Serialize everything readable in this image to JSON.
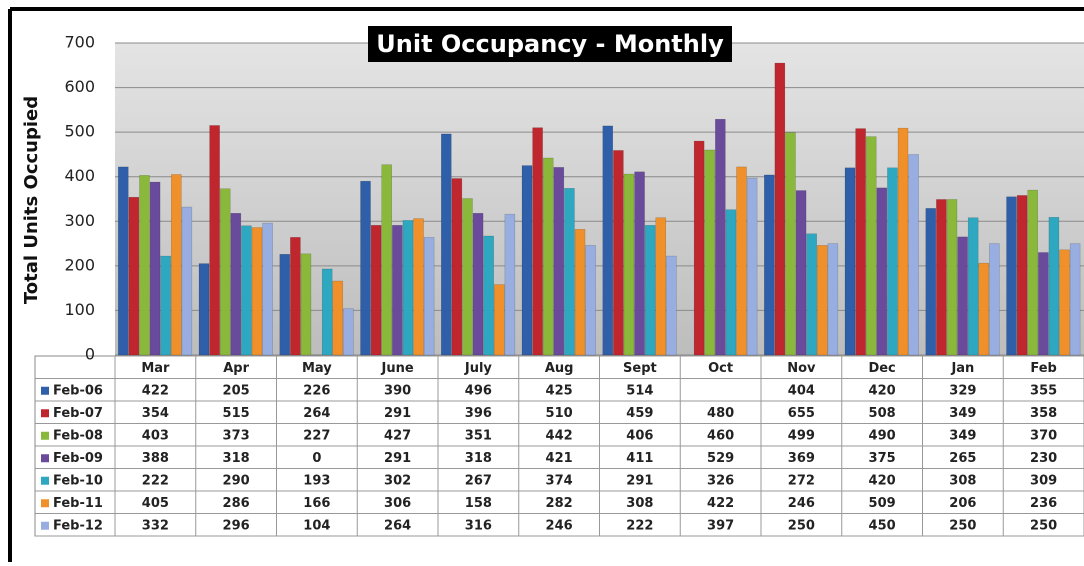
{
  "chart_data": {
    "type": "bar",
    "title": "Unit Occupancy - Monthly",
    "y_label": "Total Units Occupied",
    "categories": [
      "Mar",
      "Apr",
      "May",
      "June",
      "July",
      "Aug",
      "Sept",
      "Oct",
      "Nov",
      "Dec",
      "Jan",
      "Feb"
    ],
    "series": [
      {
        "name": "Feb-06",
        "color": "#2f5fa8",
        "values": [
          422,
          205,
          226,
          390,
          496,
          425,
          514,
          null,
          404,
          420,
          329,
          355
        ]
      },
      {
        "name": "Feb-07",
        "color": "#c0262d",
        "values": [
          354,
          515,
          264,
          291,
          396,
          510,
          459,
          480,
          655,
          508,
          349,
          358
        ]
      },
      {
        "name": "Feb-08",
        "color": "#8ab83a",
        "values": [
          403,
          373,
          227,
          427,
          351,
          442,
          406,
          460,
          499,
          490,
          349,
          370
        ]
      },
      {
        "name": "Feb-09",
        "color": "#6a4a9a",
        "values": [
          388,
          318,
          0,
          291,
          318,
          421,
          411,
          529,
          369,
          375,
          265,
          230
        ]
      },
      {
        "name": "Feb-10",
        "color": "#2ea8c0",
        "values": [
          222,
          290,
          193,
          302,
          267,
          374,
          291,
          326,
          272,
          420,
          308,
          309
        ]
      },
      {
        "name": "Feb-11",
        "color": "#f0902a",
        "values": [
          405,
          286,
          166,
          306,
          158,
          282,
          308,
          422,
          246,
          509,
          206,
          236
        ]
      },
      {
        "name": "Feb-12",
        "color": "#98aee0",
        "values": [
          332,
          296,
          104,
          264,
          316,
          246,
          222,
          397,
          250,
          450,
          250,
          250
        ]
      }
    ],
    "ylim": [
      0,
      700
    ],
    "yticks": [
      0,
      100,
      200,
      300,
      400,
      500,
      600,
      700
    ],
    "grid": true
  }
}
